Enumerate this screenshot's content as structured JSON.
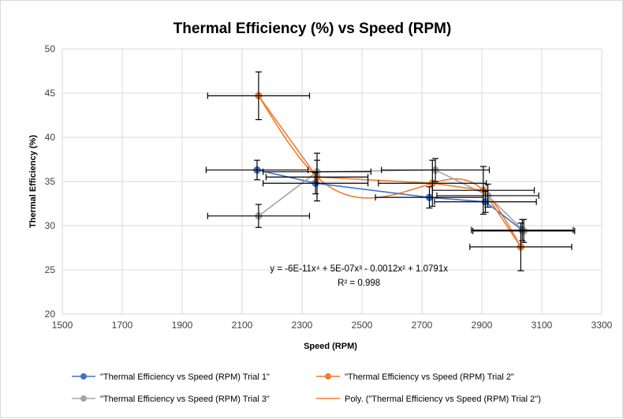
{
  "chart_data": {
    "type": "scatter",
    "title": "Thermal Efficiency (%) vs Speed (RPM)",
    "xlabel": "Speed (RPM)",
    "ylabel": "Thermal Efficiency (%)",
    "xlim": [
      1500,
      3300
    ],
    "ylim": [
      20,
      50
    ],
    "xticks": [
      1500,
      1700,
      1900,
      2100,
      2300,
      2500,
      2700,
      2900,
      3100,
      3300
    ],
    "yticks": [
      20,
      25,
      30,
      35,
      40,
      45,
      50
    ],
    "grid": true,
    "legend_position": "bottom",
    "series": [
      {
        "name": "\"Thermal Efficiency vs Speed (RPM) Trial 1\"",
        "color": "#4472c4",
        "x": [
          2150,
          2345,
          2725,
          2912,
          3035
        ],
        "y": [
          36.3,
          34.8,
          33.2,
          32.7,
          29.5
        ],
        "x_err": [
          170,
          175,
          180,
          170,
          170
        ],
        "y_err": [
          1.1,
          1.2,
          1.2,
          1.2,
          1.2
        ]
      },
      {
        "name": "\"Thermal Efficiency vs Speed (RPM) Trial 2\"",
        "color": "#ed7d31",
        "x": [
          2155,
          2350,
          2735,
          2905,
          3030
        ],
        "y": [
          44.7,
          35.5,
          34.8,
          34.0,
          27.6
        ],
        "x_err": [
          170,
          170,
          180,
          170,
          170
        ],
        "y_err": [
          2.7,
          2.7,
          2.6,
          2.7,
          2.7
        ]
      },
      {
        "name": "\"Thermal Efficiency vs Speed (RPM) Trial 3\"",
        "color": "#a5a5a5",
        "x": [
          2155,
          2350,
          2745,
          2920,
          3040
        ],
        "y": [
          31.1,
          36.1,
          36.3,
          33.4,
          29.4
        ],
        "x_err": [
          170,
          180,
          180,
          170,
          170
        ],
        "y_err": [
          1.3,
          1.3,
          1.3,
          1.3,
          1.3
        ]
      }
    ],
    "trendline": {
      "name": "Poly. (\"Thermal Efficiency vs Speed (RPM) Trial 2\")",
      "color": "#ed7d31",
      "type": "polynomial",
      "order": 4,
      "of_series": 1,
      "equation_text": "y = -6E-11x⁴ + 5E-07x³ - 0.0012x² + 1.0791x",
      "r2_text": "R² = 0.998",
      "equation_anchor": [
        2490,
        24.8
      ],
      "r2_anchor": [
        2490,
        23.2
      ]
    }
  }
}
